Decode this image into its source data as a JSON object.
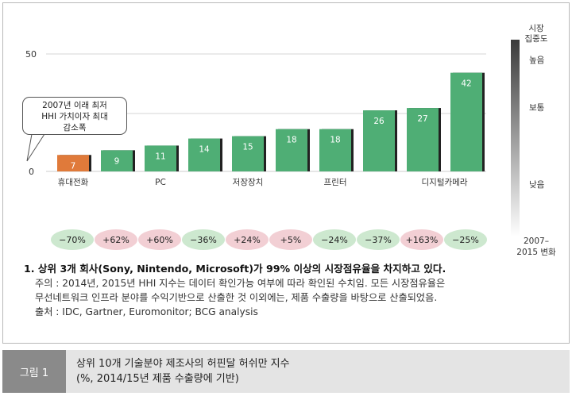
{
  "chart_data": {
    "type": "bar",
    "ytick_labels": [
      "50",
      "0"
    ],
    "ylim": [
      0,
      50
    ],
    "values": [
      7,
      9,
      11,
      14,
      15,
      18,
      18,
      26,
      27,
      42
    ],
    "bar_colors": [
      "#e07a3a",
      "#4fae75",
      "#4fae75",
      "#4fae75",
      "#4fae75",
      "#4fae75",
      "#4fae75",
      "#4fae75",
      "#4fae75",
      "#4fae75"
    ],
    "x_labels": [
      "휴대전화",
      "PC",
      "저장장치",
      "프린터",
      "디지털카메라"
    ],
    "x_label_bar_index": [
      0,
      2,
      4,
      6,
      8.5
    ],
    "changes": [
      "−70%",
      "+62%",
      "+60%",
      "−36%",
      "+24%",
      "+5%",
      "−24%",
      "−37%",
      "+163%",
      "−25%"
    ],
    "change_colors": [
      "#cde8cf",
      "#f2cfd4",
      "#f2cfd4",
      "#cde8cf",
      "#f2cfd4",
      "#f2cfd4",
      "#cde8cf",
      "#cde8cf",
      "#f2cfd4",
      "#cde8cf"
    ],
    "annotation": [
      "2007년 이래 최저",
      "HHI 가치이자 최대",
      "감소폭"
    ],
    "scale": {
      "title": [
        "시장",
        "집중도"
      ],
      "high": "높음",
      "mid": "보통",
      "low": "낮음"
    },
    "change_label": [
      "2007–",
      "2015 변화"
    ]
  },
  "notes": {
    "title": "1. 상위 3개 회사(Sony, Nintendo, Microsoft)가 99% 이상의 시장점유율을 차지하고 있다.",
    "line1": "주의 : 2014년, 2015년 HHI 지수는 데이터 확인가능 여부에 따라 확인된 수치임. 모든 시장점유율은",
    "line2": "무선네트워크 인프라 분야를 수익기반으로 산출한 것 이외에는, 제품 수출량을 바탕으로 산출되었음.",
    "line3": "출처 : IDC, Gartner, Euromonitor; BCG analysis"
  },
  "caption": {
    "tag": "그림 1",
    "line1": "상위 10개 기술분야 제조사의 허핀달 허쉬만 지수",
    "line2": "(%, 2014/15년 제품 수출량에 기반)"
  }
}
